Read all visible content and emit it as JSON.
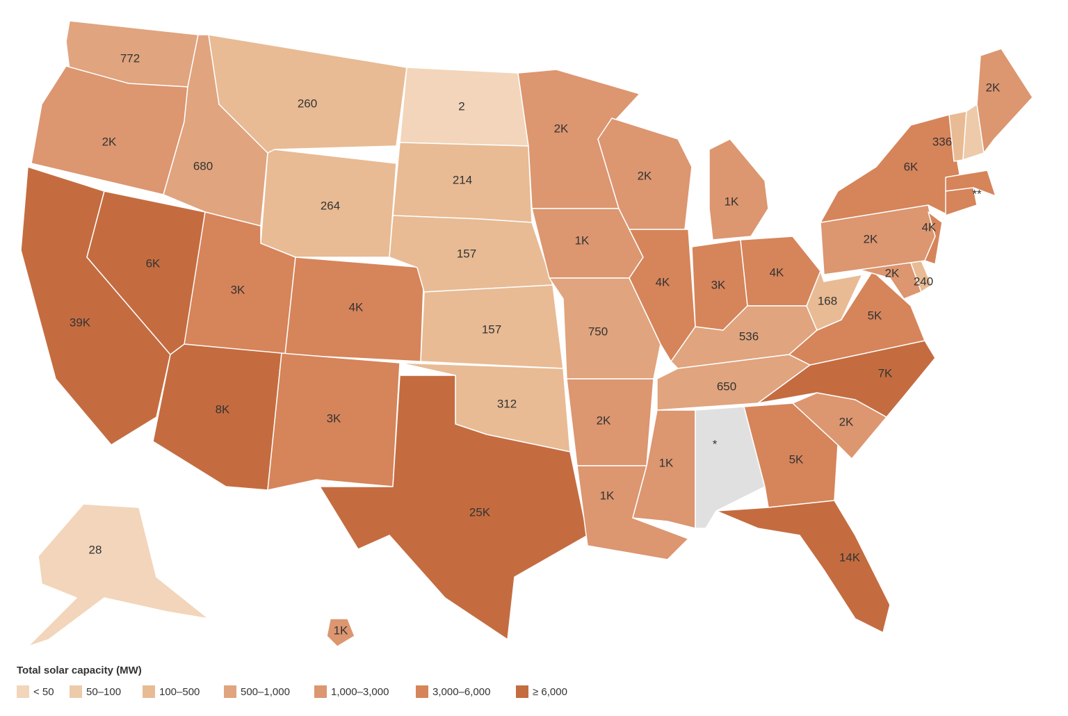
{
  "legend": {
    "title": "Total solar capacity (MW)",
    "items": [
      {
        "label": "< 50",
        "color": "#f2d5ba"
      },
      {
        "label": "50–100",
        "color": "#edcaa9"
      },
      {
        "label": "100–500",
        "color": "#e8bb94"
      },
      {
        "label": "500–1,000",
        "color": "#e0a47e"
      },
      {
        "label": "1,000–3,000",
        "color": "#dc9670"
      },
      {
        "label": "3,000–6,000",
        "color": "#d6845a"
      },
      {
        "label": "≥ 6,000",
        "color": "#c46c40"
      }
    ]
  },
  "states": [
    {
      "label": "772",
      "color": "#e0a47e"
    },
    {
      "label": "2K",
      "color": "#dc9670"
    },
    {
      "label": "39K",
      "color": "#c46c40"
    },
    {
      "label": "6K",
      "color": "#c46c40"
    },
    {
      "label": "680",
      "color": "#e0a47e"
    },
    {
      "label": "260",
      "color": "#e8bb94"
    },
    {
      "label": "264",
      "color": "#e8bb94"
    },
    {
      "label": "3K",
      "color": "#d6845a"
    },
    {
      "label": "4K",
      "color": "#d6845a"
    },
    {
      "label": "8K",
      "color": "#c46c40"
    },
    {
      "label": "3K",
      "color": "#d6845a"
    },
    {
      "label": "2",
      "color": "#f2d5ba"
    },
    {
      "label": "214",
      "color": "#e8bb94"
    },
    {
      "label": "157",
      "color": "#e8bb94"
    },
    {
      "label": "157",
      "color": "#e8bb94"
    },
    {
      "label": "312",
      "color": "#e8bb94"
    },
    {
      "label": "25K",
      "color": "#c46c40"
    },
    {
      "label": "2K",
      "color": "#dc9670"
    },
    {
      "label": "1K",
      "color": "#dc9670"
    },
    {
      "label": "750",
      "color": "#e0a47e"
    },
    {
      "label": "2K",
      "color": "#dc9670"
    },
    {
      "label": "1K",
      "color": "#dc9670"
    },
    {
      "label": "2K",
      "color": "#dc9670"
    },
    {
      "label": "4K",
      "color": "#d6845a"
    },
    {
      "label": "1K",
      "color": "#dc9670"
    },
    {
      "label": "3K",
      "color": "#d6845a"
    },
    {
      "label": "4K",
      "color": "#d6845a"
    },
    {
      "label": "536",
      "color": "#e0a47e"
    },
    {
      "label": "650",
      "color": "#e0a47e"
    },
    {
      "label": "1K",
      "color": "#dc9670"
    },
    {
      "label": "*",
      "color": "#e0e0e0"
    },
    {
      "label": "5K",
      "color": "#d6845a"
    },
    {
      "label": "14K",
      "color": "#c46c40"
    },
    {
      "label": "2K",
      "color": "#dc9670"
    },
    {
      "label": "7K",
      "color": "#c46c40"
    },
    {
      "label": "5K",
      "color": "#d6845a"
    },
    {
      "label": "168",
      "color": "#e8bb94"
    },
    {
      "label": "2K",
      "color": "#dc9670"
    },
    {
      "label": "240",
      "color": "#e8bb94"
    },
    {
      "label": "2K",
      "color": "#dc9670"
    },
    {
      "label": "4K",
      "color": "#d6845a"
    },
    {
      "label": "6K",
      "color": "#d6845a"
    },
    {
      "label": "336",
      "color": "#e8bb94"
    },
    {
      "color": "#edcaa9"
    },
    {
      "label": "2K",
      "color": "#dc9670"
    },
    {
      "label": "**",
      "color": "#d6845a"
    },
    {
      "color": "#d6845a"
    },
    {
      "label": "28",
      "color": "#f2d5ba"
    },
    {
      "label": "1K",
      "color": "#dc9670"
    }
  ]
}
